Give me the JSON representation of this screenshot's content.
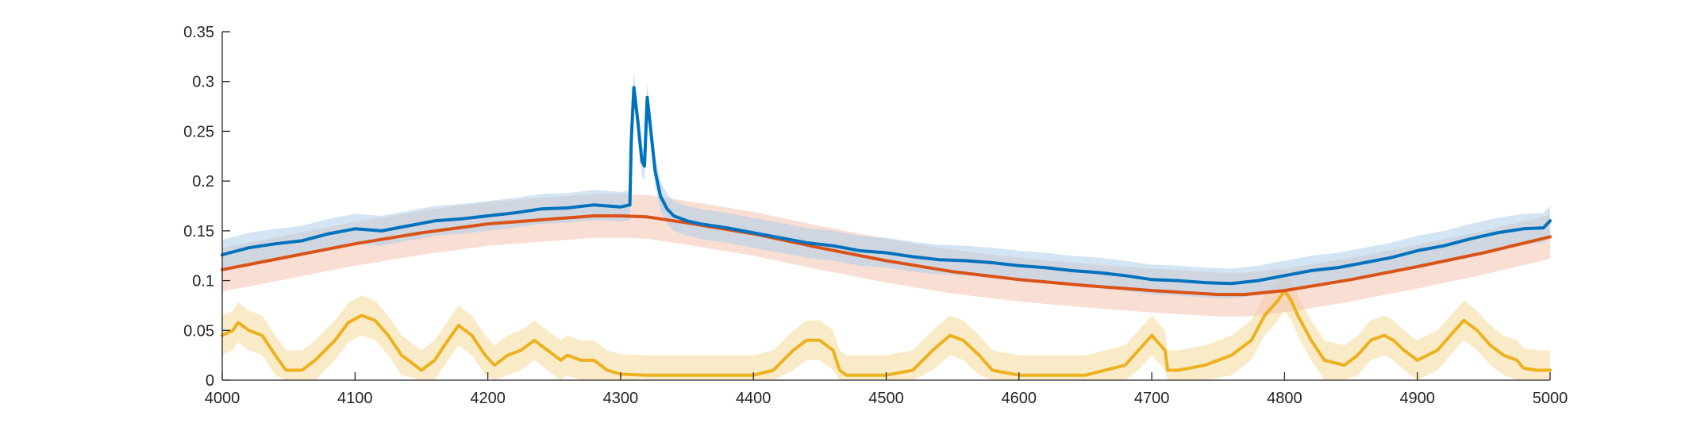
{
  "chart_data": {
    "type": "line",
    "title": "",
    "xlabel": "",
    "ylabel": "",
    "xlim": [
      4000,
      5000
    ],
    "ylim": [
      0,
      0.35
    ],
    "grid": false,
    "box": "off",
    "x_ticks": [
      4000,
      4100,
      4200,
      4300,
      4400,
      4500,
      4600,
      4700,
      4800,
      4900,
      5000
    ],
    "x_tick_labels": [
      "4000",
      "4100",
      "4200",
      "4300",
      "4400",
      "4500",
      "4600",
      "4700",
      "4800",
      "4900",
      "5000"
    ],
    "y_ticks": [
      0,
      0.05,
      0.1,
      0.15,
      0.2,
      0.25,
      0.3,
      0.35
    ],
    "y_tick_labels": [
      "0",
      "0.05",
      "0.1",
      "0.15",
      "0.2",
      "0.25",
      "0.3",
      "0.35"
    ],
    "series": [
      {
        "color": "#EDB120",
        "band_color": "#F5DA9A",
        "x": [
          4000,
          4008,
          4012,
          4020,
          4030,
          4040,
          4048,
          4060,
          4070,
          4085,
          4095,
          4105,
          4115,
          4125,
          4135,
          4150,
          4160,
          4170,
          4178,
          4188,
          4198,
          4205,
          4215,
          4225,
          4235,
          4245,
          4255,
          4260,
          4270,
          4280,
          4290,
          4300,
          4320,
          4360,
          4400,
          4415,
          4430,
          4440,
          4450,
          4460,
          4465,
          4470,
          4480,
          4500,
          4520,
          4535,
          4548,
          4558,
          4570,
          4580,
          4600,
          4650,
          4680,
          4690,
          4700,
          4710,
          4712,
          4720,
          4740,
          4760,
          4775,
          4785,
          4795,
          4800,
          4805,
          4810,
          4820,
          4830,
          4845,
          4855,
          4865,
          4875,
          4882,
          4890,
          4900,
          4915,
          4925,
          4935,
          4945,
          4955,
          4965,
          4975,
          4980,
          4990,
          5000
        ],
        "values": [
          0.045,
          0.05,
          0.058,
          0.05,
          0.045,
          0.025,
          0.01,
          0.01,
          0.02,
          0.04,
          0.058,
          0.065,
          0.06,
          0.045,
          0.025,
          0.01,
          0.02,
          0.04,
          0.055,
          0.045,
          0.025,
          0.015,
          0.025,
          0.03,
          0.04,
          0.03,
          0.02,
          0.025,
          0.02,
          0.02,
          0.01,
          0.006,
          0.005,
          0.005,
          0.005,
          0.01,
          0.03,
          0.04,
          0.04,
          0.03,
          0.01,
          0.005,
          0.005,
          0.005,
          0.01,
          0.03,
          0.045,
          0.04,
          0.025,
          0.01,
          0.005,
          0.005,
          0.015,
          0.03,
          0.045,
          0.03,
          0.01,
          0.01,
          0.015,
          0.025,
          0.04,
          0.065,
          0.08,
          0.09,
          0.08,
          0.065,
          0.04,
          0.02,
          0.015,
          0.025,
          0.04,
          0.045,
          0.04,
          0.03,
          0.02,
          0.03,
          0.045,
          0.06,
          0.05,
          0.035,
          0.025,
          0.02,
          0.012,
          0.01,
          0.01
        ],
        "band": 0.02
      },
      {
        "color": "#D95319",
        "band_color": "#F4C3AE",
        "x": [
          4000,
          4050,
          4100,
          4150,
          4200,
          4250,
          4280,
          4300,
          4320,
          4350,
          4400,
          4450,
          4500,
          4550,
          4600,
          4650,
          4700,
          4750,
          4770,
          4800,
          4850,
          4900,
          4950,
          5000
        ],
        "values": [
          0.111,
          0.124,
          0.137,
          0.148,
          0.157,
          0.162,
          0.165,
          0.165,
          0.164,
          0.158,
          0.147,
          0.133,
          0.12,
          0.109,
          0.101,
          0.095,
          0.09,
          0.086,
          0.086,
          0.09,
          0.101,
          0.114,
          0.128,
          0.144
        ],
        "band": 0.022
      },
      {
        "color": "#0072BD",
        "band_color": "#AFD0EA",
        "x": [
          4000,
          4020,
          4040,
          4060,
          4080,
          4100,
          4120,
          4140,
          4160,
          4180,
          4200,
          4220,
          4240,
          4260,
          4280,
          4300,
          4307,
          4308,
          4310,
          4313,
          4316,
          4318,
          4320,
          4322,
          4326,
          4330,
          4335,
          4340,
          4350,
          4360,
          4380,
          4400,
          4420,
          4440,
          4460,
          4480,
          4500,
          4520,
          4540,
          4560,
          4580,
          4600,
          4620,
          4640,
          4660,
          4680,
          4700,
          4720,
          4740,
          4760,
          4780,
          4800,
          4820,
          4840,
          4860,
          4880,
          4900,
          4920,
          4940,
          4960,
          4980,
          4995,
          5000
        ],
        "values": [
          0.126,
          0.133,
          0.137,
          0.14,
          0.147,
          0.152,
          0.15,
          0.155,
          0.16,
          0.162,
          0.165,
          0.168,
          0.172,
          0.173,
          0.176,
          0.174,
          0.176,
          0.24,
          0.294,
          0.26,
          0.22,
          0.215,
          0.284,
          0.26,
          0.21,
          0.185,
          0.172,
          0.165,
          0.16,
          0.157,
          0.153,
          0.148,
          0.143,
          0.138,
          0.135,
          0.13,
          0.128,
          0.124,
          0.121,
          0.12,
          0.118,
          0.115,
          0.113,
          0.11,
          0.108,
          0.105,
          0.101,
          0.1,
          0.098,
          0.097,
          0.1,
          0.105,
          0.11,
          0.113,
          0.118,
          0.123,
          0.13,
          0.135,
          0.142,
          0.148,
          0.152,
          0.153,
          0.16
        ],
        "band": 0.015
      }
    ]
  }
}
